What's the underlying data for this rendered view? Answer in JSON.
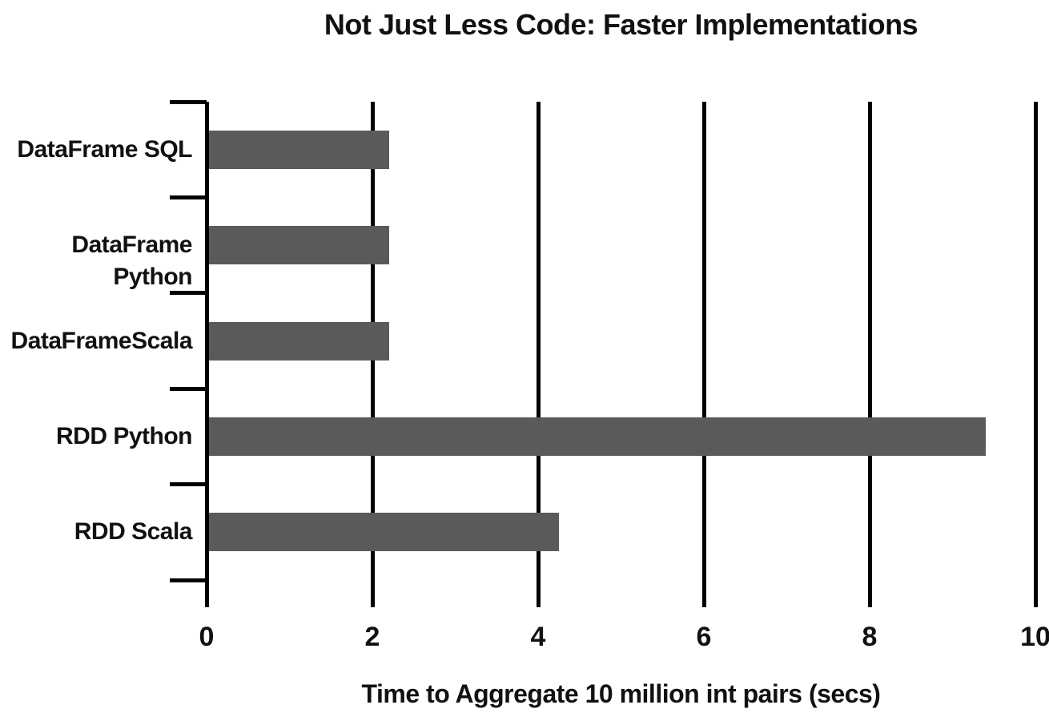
{
  "chart_data": {
    "type": "bar",
    "orientation": "horizontal",
    "title": "Not Just Less Code: Faster Implementations",
    "xlabel": "Time to Aggregate 10 million int pairs (secs)",
    "ylabel": "",
    "categories": [
      "DataFrame SQL",
      "DataFrame Python",
      "DataFrameScala",
      "RDD Python",
      "RDD Scala"
    ],
    "values": [
      2.2,
      2.2,
      2.2,
      9.4,
      4.25
    ],
    "xlim": [
      0,
      10
    ],
    "xticks": [
      0,
      2,
      4,
      6,
      8,
      10
    ],
    "grid": true,
    "legend": false,
    "bar_color": "#5a5a5a",
    "grid_color": "#000000",
    "text_color": "#111111",
    "background_color": "#ffffff"
  }
}
